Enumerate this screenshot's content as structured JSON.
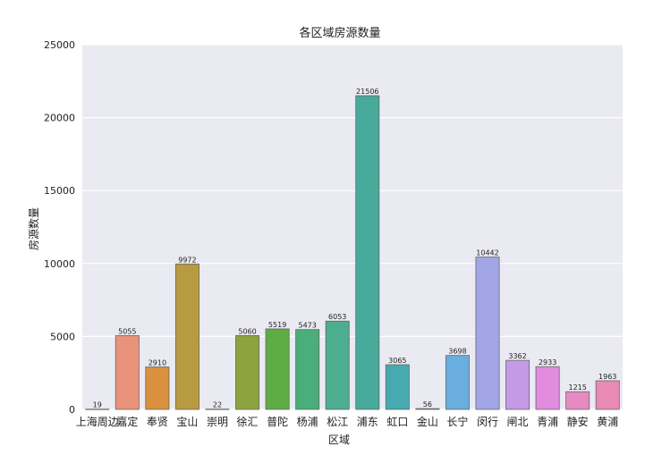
{
  "chart_data": {
    "type": "bar",
    "title": "各区域房源数量",
    "xlabel": "区域",
    "ylabel": "房源数量",
    "ylim": [
      0,
      25000
    ],
    "yticks": [
      0,
      5000,
      10000,
      15000,
      20000,
      25000
    ],
    "grid": true,
    "categories": [
      "上海周边",
      "嘉定",
      "奉贤",
      "宝山",
      "崇明",
      "徐汇",
      "普陀",
      "杨浦",
      "松江",
      "浦东",
      "虹口",
      "金山",
      "长宁",
      "闵行",
      "闸北",
      "青浦",
      "静安",
      "黄浦"
    ],
    "values": [
      19,
      5055,
      2910,
      9972,
      22,
      5060,
      5519,
      5473,
      6053,
      21506,
      3065,
      56,
      3698,
      10442,
      3362,
      2933,
      1215,
      1963
    ],
    "colors": [
      "#e8c0a8",
      "#e8937a",
      "#d9913e",
      "#b89a40",
      "#b8ae5c",
      "#8ca33e",
      "#5ead44",
      "#49ae7a",
      "#4cae8e",
      "#48aa9b",
      "#46aab0",
      "#4aa6c4",
      "#6aaee0",
      "#a2a6e6",
      "#c49ae6",
      "#e28ce0",
      "#e68ac4",
      "#e88ab4"
    ],
    "background": "#eaeaf2"
  }
}
